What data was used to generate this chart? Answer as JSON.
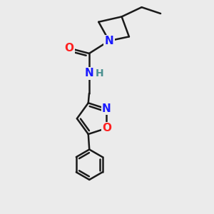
{
  "background_color": "#ebebeb",
  "bond_color": "#1a1a1a",
  "bond_width": 1.8,
  "figsize": [
    3.0,
    3.0
  ],
  "dpi": 100,
  "xlim": [
    0,
    10
  ],
  "ylim": [
    0,
    10
  ],
  "atom_labels": {
    "N_azetidine": {
      "symbol": "N",
      "color": "#1a1aff",
      "fontsize": 11
    },
    "O_carbonyl": {
      "symbol": "O",
      "color": "#ff2020",
      "fontsize": 11
    },
    "N_amide": {
      "symbol": "N",
      "color": "#1a1aff",
      "fontsize": 11
    },
    "H_amide": {
      "symbol": "H",
      "color": "#4a9090",
      "fontsize": 10
    },
    "N_oxazole": {
      "symbol": "N",
      "color": "#1a1aff",
      "fontsize": 11
    },
    "O_oxazole": {
      "symbol": "O",
      "color": "#ff2020",
      "fontsize": 11
    }
  }
}
